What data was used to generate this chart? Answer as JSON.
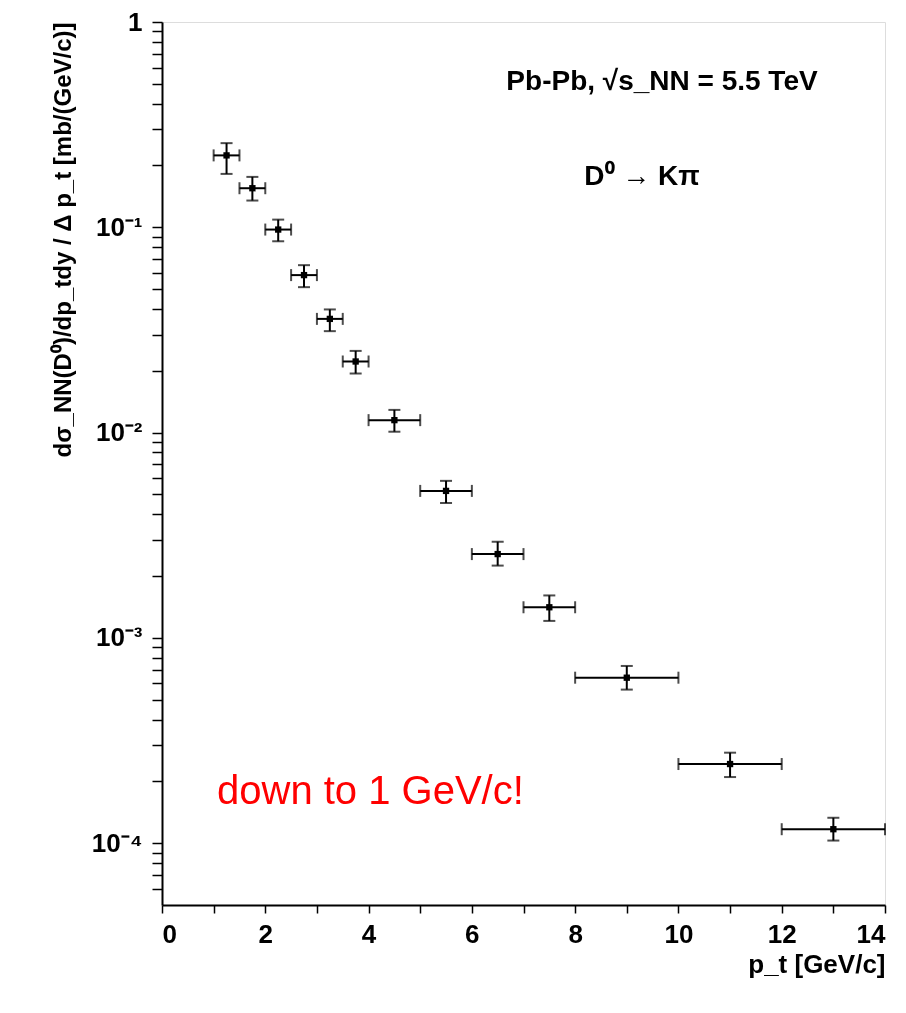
{
  "chart_data": {
    "type": "scatter",
    "title": "Pb-Pb, √s_NN = 5.5 TeV",
    "subtitle": "D⁰ → Kπ",
    "xlabel": "p_t [GeV/c]",
    "ylabel": "dσ_NN(D⁰)/dp_tdy / Δ p_t [mb/(GeV/c)]",
    "annotations": [
      "down to 1 GeV/c!"
    ],
    "x": [
      1.25,
      1.75,
      2.25,
      2.75,
      3.25,
      3.75,
      4.5,
      5.5,
      6.5,
      7.5,
      9,
      11,
      13
    ],
    "series": [
      {
        "color": "#000000",
        "values": [
          0.224,
          0.155,
          0.0975,
          0.0585,
          0.0358,
          0.0222,
          0.0115,
          0.0052,
          0.00256,
          0.00141,
          0.00064,
          0.000243,
          0.000117
        ],
        "errors": [
          [
            0.182,
            0.257
          ],
          [
            0.135,
            0.176
          ],
          [
            0.0855,
            0.109
          ],
          [
            0.0511,
            0.0654
          ],
          [
            0.0312,
            0.0398
          ],
          [
            0.0194,
            0.025
          ],
          [
            0.0101,
            0.0129
          ],
          [
            0.00454,
            0.00582
          ],
          [
            0.00225,
            0.00294
          ],
          [
            0.00121,
            0.00161
          ],
          [
            0.00056,
            0.00073
          ],
          [
            0.00021,
            0.000276
          ],
          [
            0.000103,
            0.000133
          ]
        ],
        "xerrors": [
          0.25,
          0.25,
          0.25,
          0.25,
          0.25,
          0.25,
          0.5,
          0.5,
          0.5,
          0.5,
          1,
          1,
          1
        ]
      }
    ],
    "log": "y",
    "xlim": [
      0,
      14
    ],
    "ylim": [
      5e-05,
      1
    ],
    "xticks": [
      0,
      {
        "value": 1,
        "label": null
      },
      2,
      {
        "value": 3,
        "label": null
      },
      4,
      {
        "value": 5,
        "label": null
      },
      6,
      {
        "value": 7,
        "label": null
      },
      8,
      {
        "value": 9,
        "label": null
      },
      10,
      {
        "value": 11,
        "label": null
      },
      12,
      {
        "value": 13,
        "label": null
      },
      14
    ],
    "yticks": [
      {
        "value": 6e-05,
        "label": null
      },
      {
        "value": 7e-05,
        "label": null
      },
      {
        "value": 8e-05,
        "label": null
      },
      {
        "value": 9e-05,
        "label": null
      },
      {
        "value": 0.0001,
        "label": "10⁻⁴"
      },
      {
        "value": 0.0002,
        "label": null
      },
      {
        "value": 0.0003,
        "label": null
      },
      {
        "value": 0.0004,
        "label": null
      },
      {
        "value": 0.0005,
        "label": null
      },
      {
        "value": 0.0006,
        "label": null
      },
      {
        "value": 0.0007,
        "label": null
      },
      {
        "value": 0.0008,
        "label": null
      },
      {
        "value": 0.0009,
        "label": null
      },
      {
        "value": 0.001,
        "label": "10⁻³"
      },
      {
        "value": 0.002,
        "label": null
      },
      {
        "value": 0.003,
        "label": null
      },
      {
        "value": 0.004,
        "label": null
      },
      {
        "value": 0.005,
        "label": null
      },
      {
        "value": 0.006,
        "label": null
      },
      {
        "value": 0.007,
        "label": null
      },
      {
        "value": 0.008,
        "label": null
      },
      {
        "value": 0.009,
        "label": null
      },
      {
        "value": 0.01,
        "label": "10⁻²"
      },
      {
        "value": 0.02,
        "label": null
      },
      {
        "value": 0.03,
        "label": null
      },
      {
        "value": 0.04,
        "label": null
      },
      {
        "value": 0.05,
        "label": null
      },
      {
        "value": 0.06,
        "label": null
      },
      {
        "value": 0.07,
        "label": null
      },
      {
        "value": 0.08,
        "label": null
      },
      {
        "value": 0.09,
        "label": null
      },
      {
        "value": 0.1,
        "label": "10⁻¹"
      },
      {
        "value": 0.2,
        "label": null
      },
      {
        "value": 0.3,
        "label": null
      },
      {
        "value": 0.4,
        "label": null
      },
      {
        "value": 0.5,
        "label": null
      },
      {
        "value": 0.6,
        "label": null
      },
      {
        "value": 0.7,
        "label": null
      },
      {
        "value": 0.8,
        "label": null
      },
      {
        "value": 0.9,
        "label": null
      },
      1
    ],
    "grid": false,
    "legend": false,
    "marker": "square"
  }
}
